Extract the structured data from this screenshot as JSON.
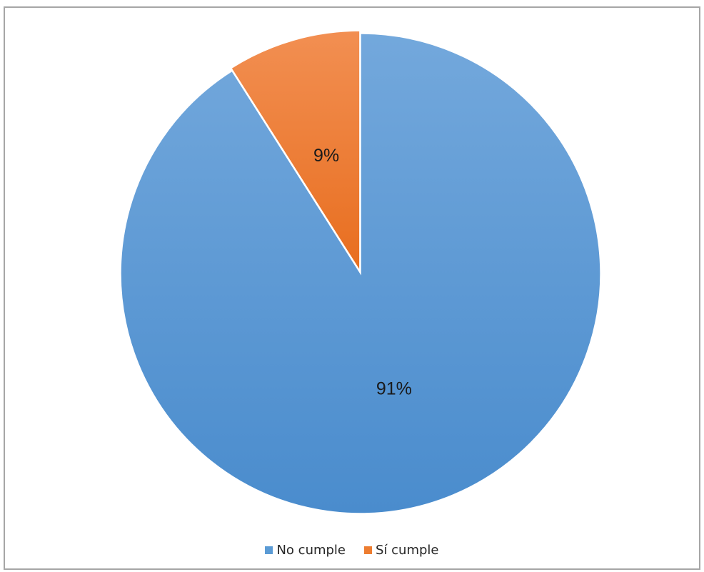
{
  "chart_data": {
    "type": "pie",
    "title": "",
    "slices": [
      {
        "label": "No cumple",
        "value": 91,
        "data_label": "91%",
        "color": "#5b9bd5",
        "gradient": [
          "#73a8dc",
          "#4a8ccd"
        ]
      },
      {
        "label": "Sí cumple",
        "value": 9,
        "data_label": "9%",
        "color": "#ed7d31",
        "gradient": [
          "#f28f52",
          "#e86e1f"
        ]
      }
    ],
    "start_angle_deg": 0,
    "direction": "clockwise",
    "exploded_slice": "Sí cumple",
    "data_labels": true,
    "legend_position": "bottom"
  }
}
